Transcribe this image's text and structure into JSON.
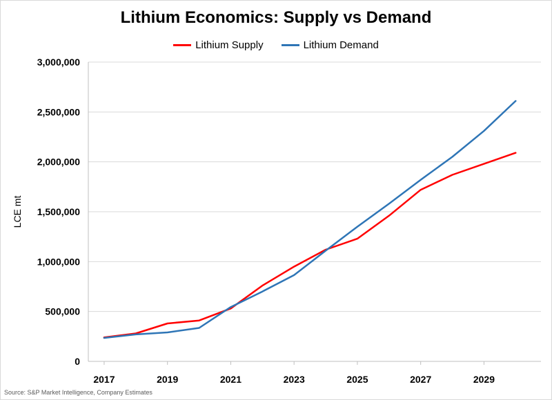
{
  "chart_data": {
    "type": "line",
    "title": "Lithium Economics: Supply vs Demand",
    "xlabel": "",
    "ylabel": "LCE mt",
    "x": [
      2017,
      2018,
      2019,
      2020,
      2021,
      2022,
      2023,
      2024,
      2025,
      2026,
      2027,
      2028,
      2029,
      2030
    ],
    "x_tick_labels": [
      "2017",
      "2019",
      "2021",
      "2023",
      "2025",
      "2027",
      "2029"
    ],
    "y_tick_labels": [
      "0",
      "500,000",
      "1,000,000",
      "1,500,000",
      "2,000,000",
      "2,500,000",
      "3,000,000"
    ],
    "ylim": [
      0,
      3000000
    ],
    "grid": true,
    "legend_position": "top-center",
    "series": [
      {
        "name": "Lithium Supply",
        "color": "#ff0000",
        "values": [
          240000,
          280000,
          380000,
          410000,
          530000,
          760000,
          950000,
          1120000,
          1230000,
          1460000,
          1720000,
          1870000,
          1980000,
          2090000
        ]
      },
      {
        "name": "Lithium Demand",
        "color": "#2e75b6",
        "values": [
          235000,
          270000,
          290000,
          335000,
          545000,
          700000,
          865000,
          1110000,
          1350000,
          1580000,
          1820000,
          2050000,
          2310000,
          2610000
        ]
      }
    ],
    "source_note": "Source: S&P Market Intelligence, Company Estimates"
  }
}
